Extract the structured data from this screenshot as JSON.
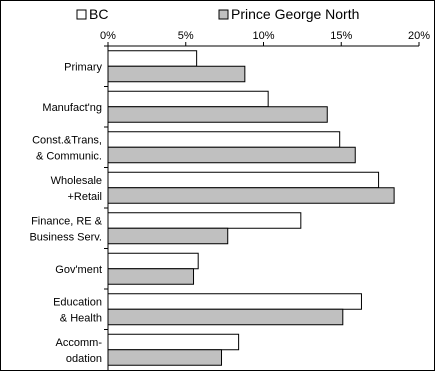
{
  "chart_data": {
    "type": "bar",
    "orientation": "horizontal",
    "title": "",
    "xlabel": "",
    "ylabel": "",
    "categories": [
      "Primary",
      "Manufact'ng",
      "Const.&Trans,\n& Communic.",
      "Wholesale\n+Retail",
      "Finance, RE &\nBusiness Serv.",
      "Gov'ment",
      "Education\n& Health",
      "Accomm-\nodation"
    ],
    "series": [
      {
        "name": "BC",
        "color": "#ffffff",
        "values": [
          5.7,
          10.3,
          14.9,
          17.4,
          12.4,
          5.8,
          16.3,
          8.4
        ]
      },
      {
        "name": "Prince George North",
        "color": "#c0c0c0",
        "values": [
          8.8,
          14.1,
          15.9,
          18.4,
          7.7,
          5.5,
          15.1,
          7.3
        ]
      }
    ],
    "xlim": [
      0,
      20
    ],
    "xticks": [
      "0%",
      "5%",
      "10%",
      "15%",
      "20%"
    ],
    "xtick_values": [
      0,
      5,
      10,
      15,
      20
    ],
    "axis_position": "top",
    "grid": false,
    "legend_position": "top"
  }
}
